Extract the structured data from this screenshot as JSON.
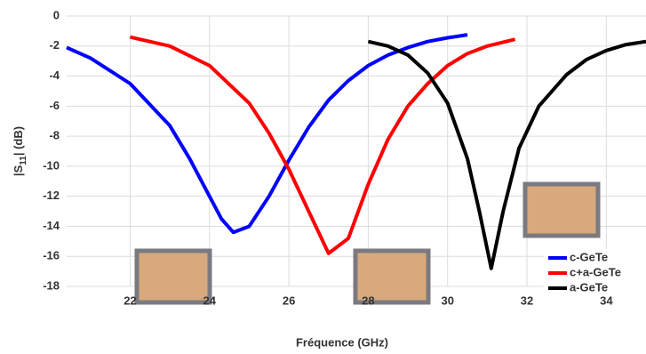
{
  "chart_data": {
    "type": "line",
    "xlabel": "Fréquence (GHz)",
    "ylabel": [
      "|S",
      "11",
      "| (dB)"
    ],
    "xlim": [
      20.4,
      35
    ],
    "xticks": [
      22,
      24,
      26,
      28,
      30,
      32,
      34
    ],
    "ylim": [
      -18,
      0
    ],
    "yticks": [
      0,
      -2,
      -4,
      -6,
      -8,
      -10,
      -12,
      -14,
      -16,
      -18
    ],
    "grid": true,
    "legend": "lower right",
    "series": [
      {
        "name": "c-GeTe",
        "color": "#0000ff",
        "x": [
          20.4,
          21,
          22,
          23,
          23.5,
          24,
          24.3,
          24.6,
          25,
          25.5,
          26,
          26.5,
          27,
          27.5,
          28,
          28.5,
          29,
          29.5,
          30,
          30.5
        ],
        "values": [
          -2.1,
          -2.8,
          -4.5,
          -7.3,
          -9.5,
          -12,
          -13.5,
          -14.4,
          -14,
          -12,
          -9.6,
          -7.4,
          -5.6,
          -4.3,
          -3.3,
          -2.6,
          -2.1,
          -1.7,
          -1.45,
          -1.25
        ]
      },
      {
        "name": "c+a-GeTe",
        "color": "#ff0000",
        "x": [
          22,
          23,
          24,
          25,
          25.5,
          26,
          26.5,
          27,
          27.5,
          28,
          28.5,
          29,
          29.5,
          30,
          30.5,
          31,
          31.7
        ],
        "values": [
          -1.4,
          -2,
          -3.3,
          -5.8,
          -7.8,
          -10.2,
          -13,
          -15.8,
          -14.8,
          -11.2,
          -8.2,
          -6,
          -4.5,
          -3.3,
          -2.5,
          -2,
          -1.55
        ]
      },
      {
        "name": "a-GeTe",
        "color": "#000000",
        "x": [
          28,
          28.5,
          29,
          29.5,
          30,
          30.5,
          30.8,
          31.1,
          31.4,
          31.8,
          32.3,
          33,
          33.5,
          34,
          34.5,
          35
        ],
        "values": [
          -1.7,
          -2,
          -2.6,
          -3.8,
          -5.8,
          -9.5,
          -13,
          -16.8,
          -13,
          -8.8,
          -6,
          -3.9,
          -2.9,
          -2.3,
          -1.9,
          -1.7
        ]
      }
    ]
  }
}
